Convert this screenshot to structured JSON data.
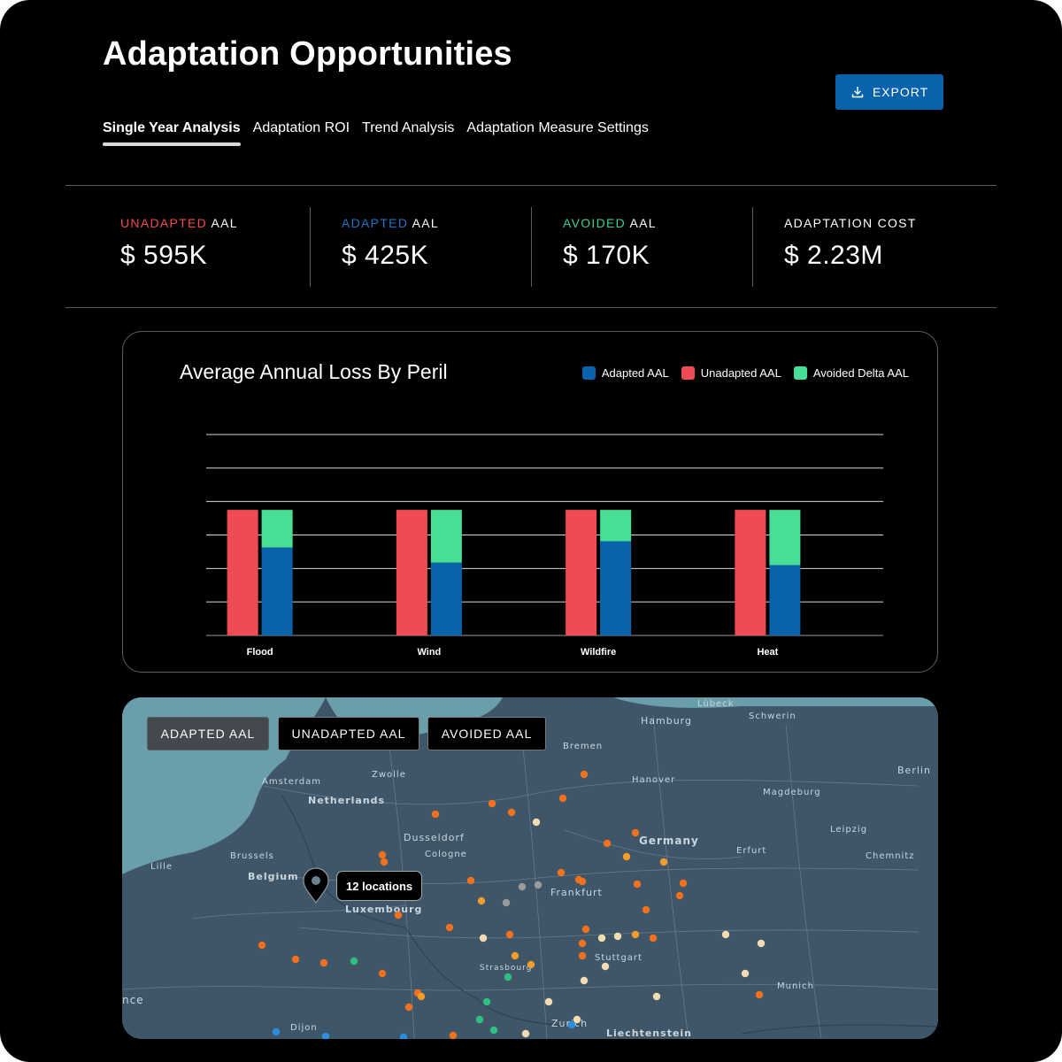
{
  "header": {
    "title": "Adaptation Opportunities",
    "export_label": "EXPORT"
  },
  "tabs": [
    {
      "label": "Single Year Analysis",
      "active": true
    },
    {
      "label": "Adaptation ROI",
      "active": false
    },
    {
      "label": "Trend Analysis",
      "active": false
    },
    {
      "label": "Adaptation Measure Settings",
      "active": false
    }
  ],
  "stats": [
    {
      "prefix": "UNADAPTED",
      "suffix": " AAL",
      "value": "$ 595K",
      "color": "#ef4b52"
    },
    {
      "prefix": "ADAPTED",
      "suffix": " AAL",
      "value": "$ 425K",
      "color": "#1f74c4"
    },
    {
      "prefix": "AVOIDED",
      "suffix": " AAL",
      "value": "$ 170K",
      "color": "#3fd193"
    },
    {
      "prefix": "",
      "suffix": "ADAPTATION COST",
      "value": "$ 2.23M",
      "color": "#ffffff"
    }
  ],
  "chart_data": {
    "type": "bar",
    "title": "Average Annual Loss By Peril",
    "categories": [
      "Flood",
      "Wind",
      "Wildfire",
      "Heat"
    ],
    "series": [
      {
        "name": "Unadapted AAL",
        "color": "#ef4b52",
        "values": [
          100,
          100,
          100,
          100
        ]
      },
      {
        "name": "Adapted AAL",
        "color": "#0a62aa",
        "values": [
          70,
          58,
          75,
          56
        ]
      },
      {
        "name": "Avoided Delta AAL",
        "color": "#47de97",
        "values": [
          30,
          42,
          25,
          44
        ]
      }
    ],
    "legend": [
      "Adapted AAL",
      "Unadapted AAL",
      "Avoided Delta AAL"
    ],
    "legend_colors": [
      "#0a62aa",
      "#ef4b52",
      "#47de97"
    ],
    "ylim": [
      0,
      160
    ],
    "grid": true,
    "legend_position": "top-right"
  },
  "map": {
    "buttons": [
      {
        "label": "ADAPTED AAL",
        "active": true
      },
      {
        "label": "UNADAPTED AAL",
        "active": false
      },
      {
        "label": "AVOIDED AAL",
        "active": false
      }
    ],
    "tooltip": "12 locations",
    "labels": [
      "Lübeck",
      "Schwerin",
      "Hamburg",
      "Bremen",
      "Berlin",
      "Amsterdam",
      "Zwolle",
      "Hanover",
      "Magdeburg",
      "Netherlands",
      "Dusseldorf",
      "Germany",
      "Leipzig",
      "Brussels",
      "Cologne",
      "Erfurt",
      "Chemnitz",
      "Lille",
      "Belgium",
      "Frankfurt",
      "Luxembourg",
      "Strasbourg",
      "Stuttgart",
      "Munich",
      "nce",
      "Dijon",
      "Zurich",
      "Liechtenstein"
    ],
    "marker_colors": {
      "orange": "#f2711c",
      "amber": "#f39c2a",
      "cream": "#f3dcb0",
      "gray": "#9a9a9a",
      "green": "#2fbf82",
      "blue": "#2b8fe0"
    }
  }
}
